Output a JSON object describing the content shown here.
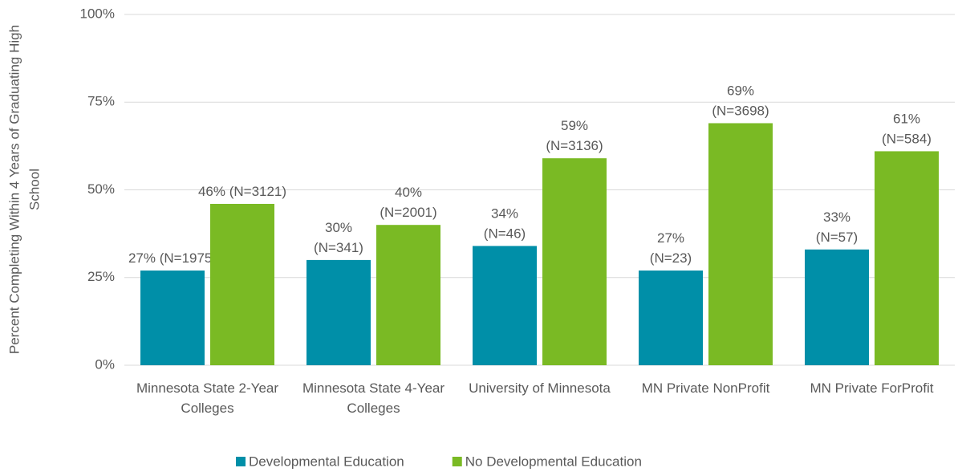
{
  "chart_data": {
    "type": "bar",
    "y_label": "Percent Completing Within 4 Years of Graduating High School",
    "categories": [
      "Minnesota State 2-Year Colleges",
      "Minnesota State 4-Year Colleges",
      "University of Minnesota",
      "MN Private NonProfit",
      "MN Private ForProfit"
    ],
    "series": [
      {
        "name": "Developmental Education",
        "color": "#008fa8",
        "values": [
          27,
          30,
          34,
          27,
          33
        ],
        "value_labels": [
          "27% (N=1975)",
          "30% (N=341)",
          "34% (N=46)",
          "27% (N=23)",
          "33% (N=57)"
        ]
      },
      {
        "name": "No Developmental Education",
        "color": "#7aba24",
        "values": [
          46,
          40,
          59,
          69,
          61
        ],
        "value_labels": [
          "46% (N=3121)",
          "40% (N=2001)",
          "59% (N=3136)",
          "69% (N=3698)",
          "61% (N=584)"
        ]
      }
    ],
    "ylim": [
      0,
      100
    ],
    "yticks": [
      {
        "value": 0,
        "label": "0%"
      },
      {
        "value": 25,
        "label": "25%"
      },
      {
        "value": 50,
        "label": "50%"
      },
      {
        "value": 75,
        "label": "75%"
      },
      {
        "value": 100,
        "label": "100%"
      }
    ],
    "grid": true
  }
}
